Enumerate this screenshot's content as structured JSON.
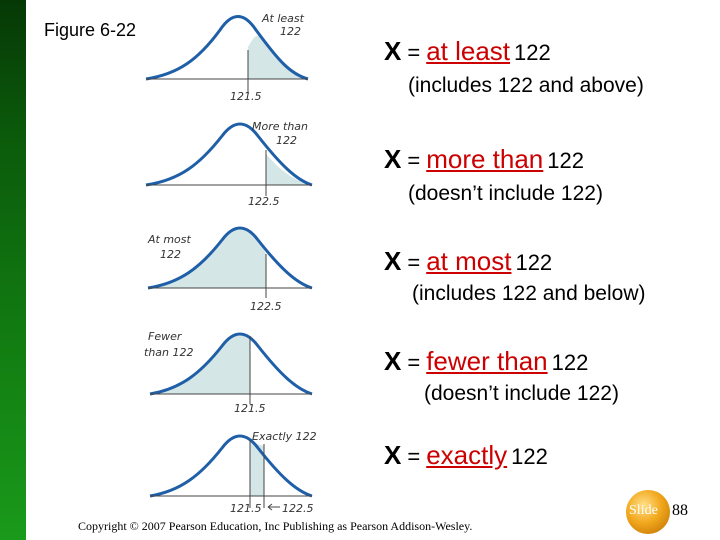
{
  "figure_label": "Figure 6-22",
  "variable": "X",
  "equals": "=",
  "panels": [
    {
      "curve_top_label": [
        "At least",
        "122"
      ],
      "axis_label": "121.5",
      "phrase": "at least",
      "value": "122",
      "note": "(includes 122 and above)"
    },
    {
      "curve_top_label": [
        "More than",
        "122"
      ],
      "axis_label": "122.5",
      "phrase": "more than",
      "value": "122",
      "note": "(doesn’t include 122)"
    },
    {
      "curve_top_label": [
        "At most",
        "122"
      ],
      "axis_label": "122.5",
      "phrase": "at most",
      "value": "122",
      "note": "(includes 122 and below)"
    },
    {
      "curve_top_label": [
        "Fewer",
        "than 122"
      ],
      "axis_label": "121.5",
      "phrase": "fewer than",
      "value": "122",
      "note": "(doesn’t include 122)"
    },
    {
      "curve_top_label": [
        "Exactly 122"
      ],
      "axis_label_left": "121.5",
      "axis_label_right": "122.5",
      "phrase": "exactly",
      "value": "122",
      "note": ""
    }
  ],
  "slide_word": "Slide",
  "slide_number": "88",
  "copyright": "Copyright © 2007 Pearson Education, Inc Publishing as Pearson Addison-Wesley.",
  "colors": {
    "curve": "#1f5fa8",
    "shade": "#d4e6e6",
    "phrase": "#cc0000",
    "sidebar": "#117a11"
  }
}
